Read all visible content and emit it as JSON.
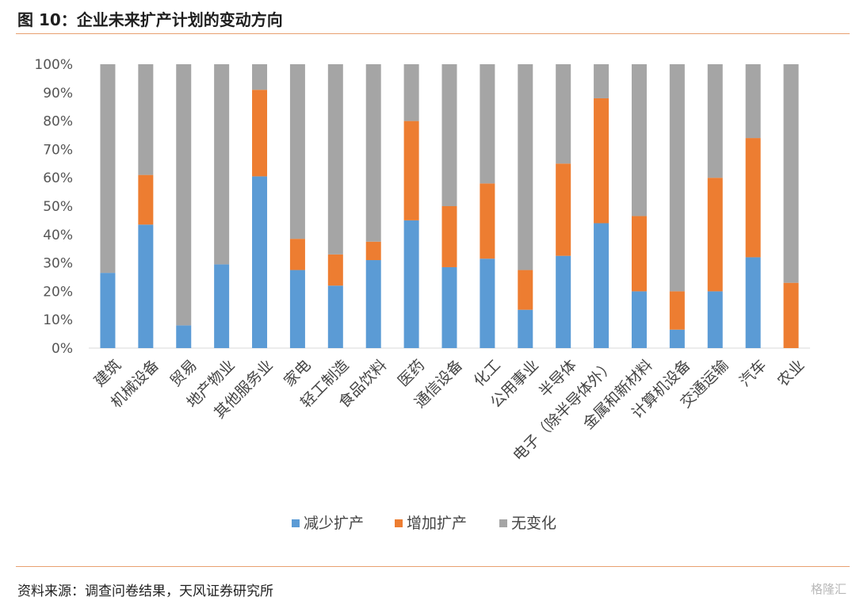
{
  "title": "图 10：企业未来扩产计划的变动方向",
  "source": "资料来源：调查问卷结果，天风证券研究所",
  "watermark": "格隆汇",
  "chart_data": {
    "type": "bar",
    "stacked": true,
    "categories": [
      "建筑",
      "机械设备",
      "贸易",
      "地产物业",
      "其他服务业",
      "家电",
      "轻工制造",
      "食品饮料",
      "医药",
      "通信设备",
      "化工",
      "公用事业",
      "半导体",
      "电子（除半导体外）",
      "金属和新材料",
      "计算机设备",
      "交通运输",
      "汽车",
      "农业"
    ],
    "series": [
      {
        "name": "减少扩产",
        "color": "#5b9bd5",
        "values": [
          26.5,
          43.5,
          8,
          29.5,
          60.5,
          27.5,
          22,
          31,
          45,
          28.5,
          31.5,
          13.5,
          32.5,
          44,
          20,
          6.5,
          20,
          32,
          0
        ]
      },
      {
        "name": "增加扩产",
        "color": "#ed7d31",
        "values": [
          0,
          17.5,
          0,
          0,
          30.5,
          11,
          11,
          6.5,
          35,
          21.5,
          26.5,
          14,
          32.5,
          44,
          26.5,
          13.5,
          40,
          42,
          23
        ]
      },
      {
        "name": "无变化",
        "color": "#a5a5a5",
        "values": [
          73.5,
          39,
          92,
          70.5,
          9,
          61.5,
          67,
          62.5,
          20,
          50,
          42,
          72.5,
          35,
          12,
          53.5,
          80,
          40,
          26,
          77
        ]
      }
    ],
    "yticks": [
      "0%",
      "10%",
      "20%",
      "30%",
      "40%",
      "50%",
      "60%",
      "70%",
      "80%",
      "90%",
      "100%"
    ],
    "ylim": [
      0,
      100
    ],
    "legend_position": "bottom",
    "grid": false
  }
}
